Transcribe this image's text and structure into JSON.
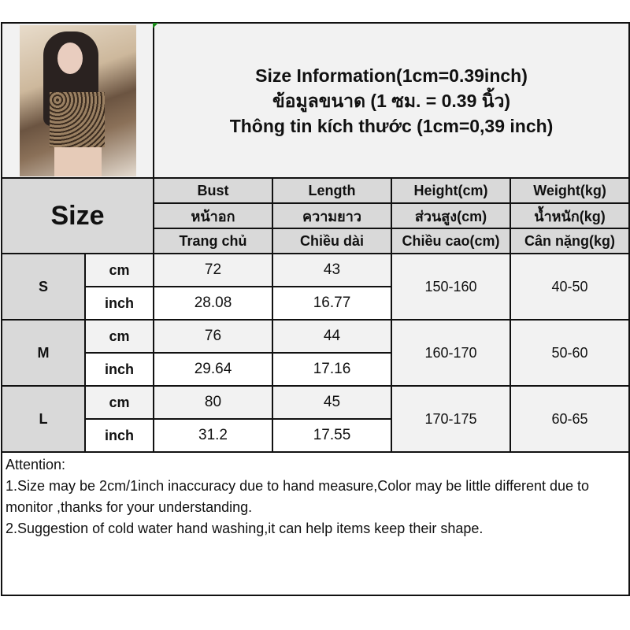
{
  "title_lines": [
    "Size Information(1cm=0.39inch)",
    "ข้อมูลขนาด (1 ซม. = 0.39 นิ้ว)",
    "Thông tin kích thước (1cm=0,39 inch)"
  ],
  "size_header": "Size",
  "columns": [
    {
      "en": "Bust",
      "th": "หน้าอก",
      "vi": "Trang chủ"
    },
    {
      "en": "Length",
      "th": "ความยาว",
      "vi": "Chiều dài"
    },
    {
      "en": "Height(cm)",
      "th": "ส่วนสูง(cm)",
      "vi": "Chiều cao(cm)"
    },
    {
      "en": "Weight(kg)",
      "th": "น้ำหนัก(kg)",
      "vi": "Cân nặng(kg)"
    }
  ],
  "units": {
    "cm": "cm",
    "inch": "inch"
  },
  "sizes": [
    {
      "size": "S",
      "cm": {
        "bust": "72",
        "length": "43"
      },
      "inch": {
        "bust": "28.08",
        "length": "16.77"
      },
      "height": "150-160",
      "weight": "40-50"
    },
    {
      "size": "M",
      "cm": {
        "bust": "76",
        "length": "44"
      },
      "inch": {
        "bust": "29.64",
        "length": "17.16"
      },
      "height": "160-170",
      "weight": "50-60"
    },
    {
      "size": "L",
      "cm": {
        "bust": "80",
        "length": "45"
      },
      "inch": {
        "bust": "31.2",
        "length": "17.55"
      },
      "height": "170-175",
      "weight": "60-65"
    }
  ],
  "notes": {
    "heading": "Attention:",
    "lines": [
      "1.Size may be 2cm/1inch inaccuracy due to hand measure,Color may be little different due to monitor ,thanks for your understanding.",
      "2.Suggestion of cold water hand washing,it can help items keep their shape."
    ]
  }
}
